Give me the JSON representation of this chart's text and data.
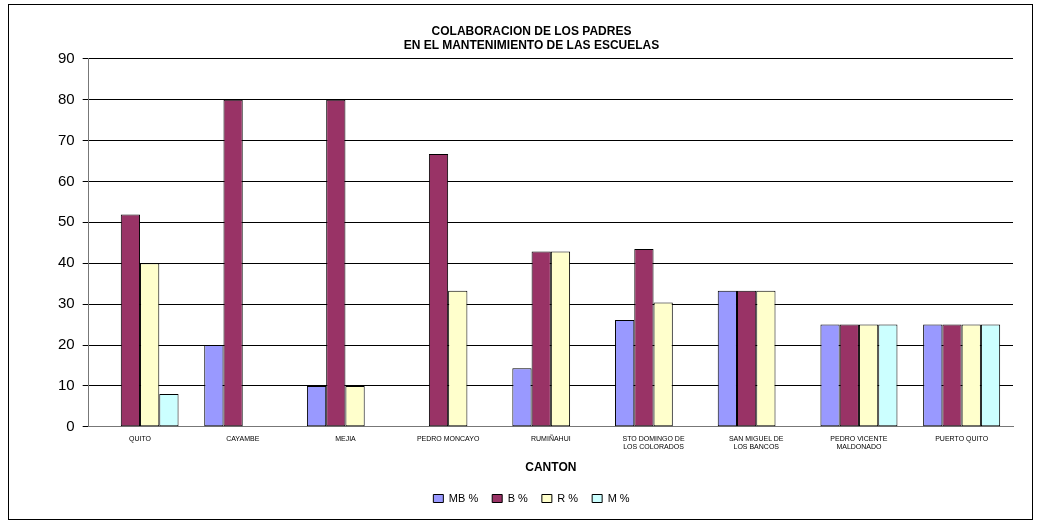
{
  "chart_data": {
    "type": "bar",
    "title": "COLABORACION DE LOS PADRES\nEN EL MANTENIMIENTO DE LAS ESCUELAS",
    "xlabel": "CANTON",
    "categories": [
      "QUITO",
      "CAYAMBE",
      "MEJIA",
      "PEDRO MONCAYO",
      "RUMIÑAHUI",
      "STO DOMINGO DE LOS COLORADOS",
      "SAN MIGUEL DE LOS BANCOS",
      "PEDRO VICENTE MALDONADO",
      "PUERTO QUITO"
    ],
    "series": [
      {
        "name": "MB %",
        "color": "#9999ff",
        "values": [
          0,
          20,
          10,
          0,
          14.3,
          26.1,
          33.3,
          25,
          25
        ]
      },
      {
        "name": "B %",
        "color": "#993366",
        "values": [
          51.9,
          80,
          80,
          66.7,
          42.9,
          43.5,
          33.3,
          25,
          25
        ]
      },
      {
        "name": "R %",
        "color": "#ffffcc",
        "values": [
          40,
          0,
          10,
          33.3,
          42.9,
          30.4,
          33.3,
          25,
          25
        ]
      },
      {
        "name": "M %",
        "color": "#ccffff",
        "values": [
          8,
          0,
          0,
          0,
          0,
          0,
          0,
          25,
          25
        ]
      }
    ],
    "ylim": [
      0,
      90
    ],
    "yticks": [
      0,
      10,
      20,
      30,
      40,
      50,
      60,
      70,
      80,
      90
    ],
    "grid": "y",
    "legend": "bottom"
  }
}
